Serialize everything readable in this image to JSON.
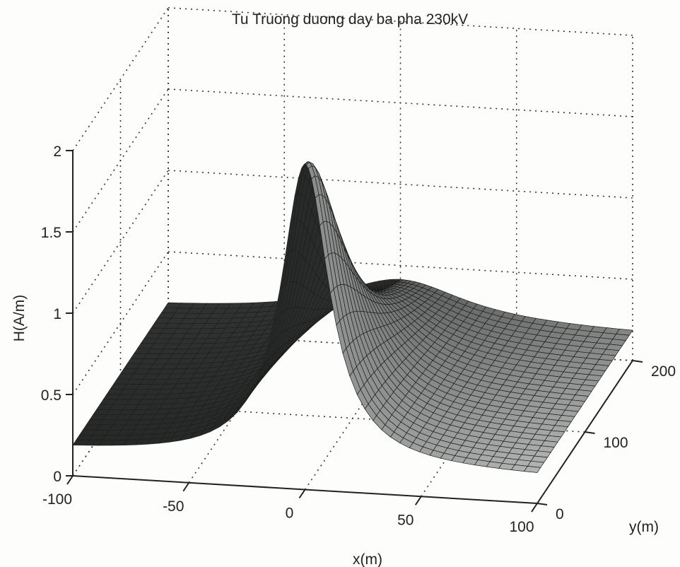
{
  "chart_data": {
    "type": "surface",
    "title": "Tu Truong duong day ba pha 230kV",
    "xlabel": "x(m)",
    "ylabel": "y(m)",
    "zlabel": "H(A/m)",
    "xlim": [
      -100,
      100
    ],
    "ylim": [
      0,
      200
    ],
    "zlim": [
      0,
      2
    ],
    "x_ticks": [
      "-100",
      "-50",
      "0",
      "50",
      "100"
    ],
    "y_ticks": [
      "0",
      "100",
      "200"
    ],
    "z_ticks": [
      "0",
      "0.5",
      "1",
      "1.5",
      "2"
    ],
    "grid": true,
    "peak": {
      "x": 0,
      "y": 0,
      "H": 2.0
    },
    "profile_x": [
      -100,
      -75,
      -50,
      -25,
      -10,
      0,
      10,
      25,
      50,
      75,
      100
    ],
    "profile_H_at_y0": [
      0.16,
      0.2,
      0.27,
      0.45,
      0.78,
      2.0,
      0.78,
      0.45,
      0.27,
      0.2,
      0.16
    ],
    "edge_H_at_x0": {
      "y": [
        0,
        200
      ],
      "H": [
        2.0,
        0.98
      ]
    },
    "colors": {
      "surface_dark": "#2a2f2d",
      "surface_light": "#9c9c9c",
      "grid": "#333333"
    }
  }
}
